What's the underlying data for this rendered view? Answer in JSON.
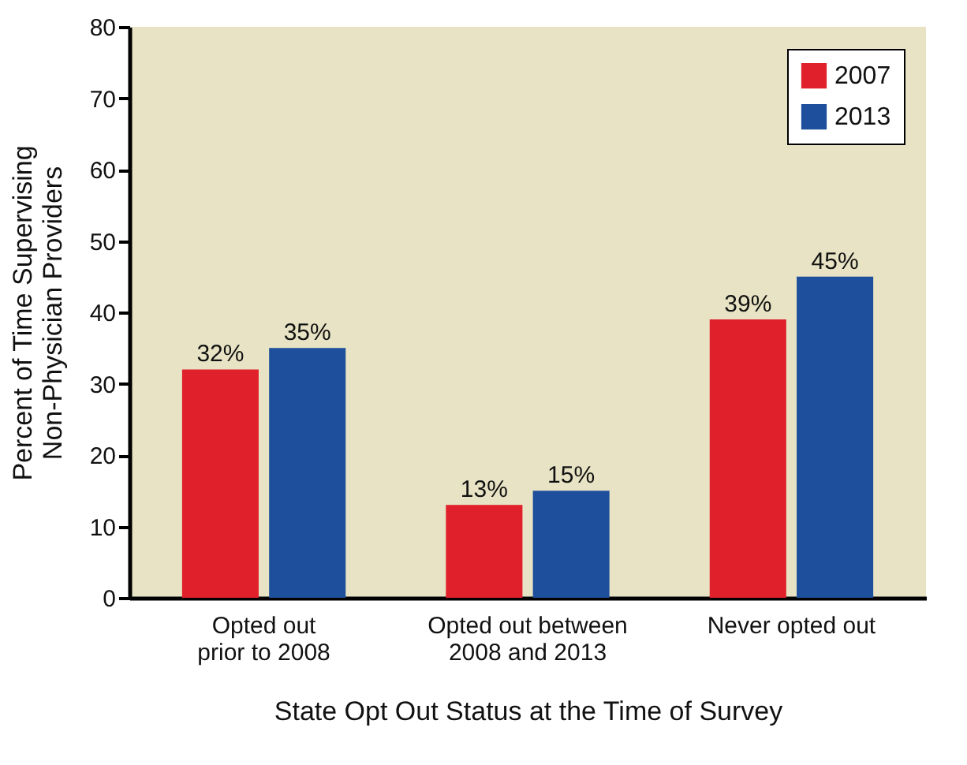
{
  "chart_data": {
    "type": "bar",
    "xlabel": "State Opt Out Status at the Time of Survey",
    "ylabel": "Percent of Time Supervising\nNon-Physician Providers",
    "categories": [
      "Opted out\nprior to 2008",
      "Opted out between\n2008 and 2013",
      "Never opted out"
    ],
    "series": [
      {
        "name": "2007",
        "color": "#e0202a",
        "values": [
          32,
          13,
          39
        ],
        "value_labels": [
          "32%",
          "13%",
          "39%"
        ]
      },
      {
        "name": "2013",
        "color": "#1d4f9c",
        "values": [
          35,
          15,
          45
        ],
        "value_labels": [
          "35%",
          "15%",
          "45%"
        ]
      }
    ],
    "ylim": [
      0,
      80
    ],
    "yticks": [
      0,
      10,
      20,
      30,
      40,
      50,
      60,
      70,
      80
    ],
    "grid": false,
    "legend": "top right"
  }
}
